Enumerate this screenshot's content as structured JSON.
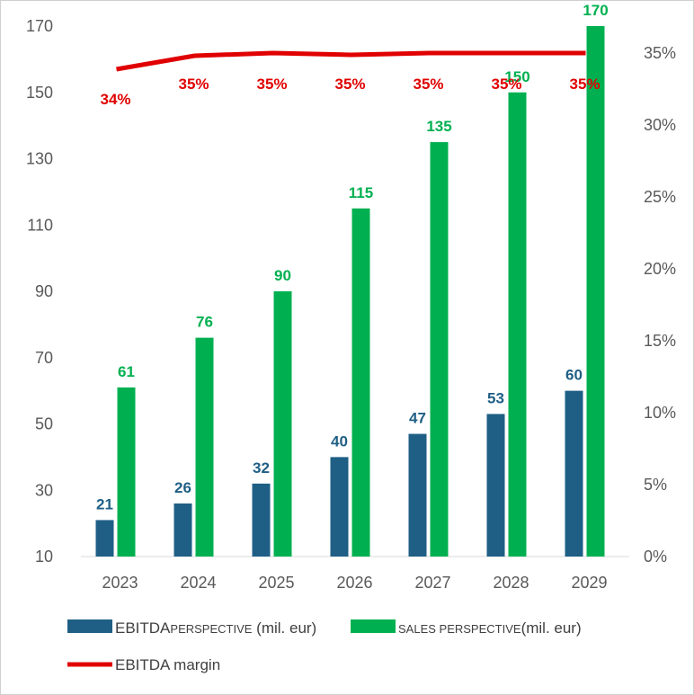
{
  "chart_data": {
    "type": "bar",
    "categories": [
      "2023",
      "2024",
      "2025",
      "2026",
      "2027",
      "2028",
      "2029"
    ],
    "series": [
      {
        "name": "EBITDA perspective (mil. eur)",
        "kind": "bar",
        "axis": "left",
        "color": "#1f5f85",
        "values": [
          21,
          26,
          32,
          40,
          47,
          53,
          60
        ],
        "labels": [
          "21",
          "26",
          "32",
          "40",
          "47",
          "53",
          "60"
        ]
      },
      {
        "name": "SALES PERSPECTIVE (mil. eur)",
        "kind": "bar",
        "axis": "left",
        "color": "#00b050",
        "values": [
          61,
          76,
          90,
          115,
          135,
          150,
          170
        ],
        "labels": [
          "61",
          "76",
          "90",
          "115",
          "135",
          "150",
          "170"
        ]
      },
      {
        "name": "EBITDA margin",
        "kind": "line",
        "axis": "right",
        "color": "#e00000",
        "values": [
          0.34,
          0.35,
          0.35,
          0.35,
          0.35,
          0.35,
          0.35
        ],
        "labels": [
          "34%",
          "35%",
          "35%",
          "35%",
          "35%",
          "35%",
          "35%"
        ]
      }
    ],
    "y_left": {
      "min": 10,
      "max": 170,
      "ticks": [
        "10",
        "30",
        "50",
        "70",
        "90",
        "110",
        "130",
        "150",
        "170"
      ]
    },
    "y_right": {
      "min": 0,
      "max": 0.35,
      "ticks": [
        "0%",
        "5%",
        "10%",
        "15%",
        "20%",
        "25%",
        "30%",
        "35%"
      ]
    },
    "grid": false,
    "legend": {
      "position": "bottom",
      "ebitda": {
        "main": "EBITDA",
        "caps": "PERSPECTIVE",
        "rest": " (mil. eur)"
      },
      "sales": {
        "caps": "SALES PERSPECTIVE",
        "rest": "(mil. eur)"
      },
      "margin": {
        "main": "EBITDA margin"
      }
    }
  }
}
